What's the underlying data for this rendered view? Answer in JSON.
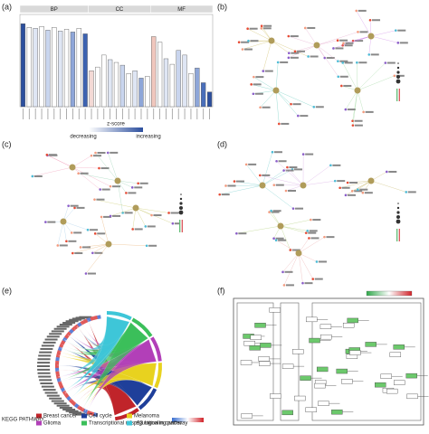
{
  "panels": [
    "(a)",
    "(b)",
    "(c)",
    "(d)",
    "(e)",
    "(f)"
  ],
  "chart_data": {
    "type": "bar",
    "ylim": [
      0,
      10
    ],
    "facets": [
      {
        "name": "BP",
        "values": [
          9.0,
          8.6,
          8.5,
          8.7,
          8.3,
          8.6,
          8.2,
          8.4,
          8.1,
          8.5,
          7.9
        ],
        "colors": [
          "#2c4f9e",
          "#ffffff",
          "#dfe6f4",
          "#ffffff",
          "#c9d5ee",
          "#ffffff",
          "#dfe6f4",
          "#ffffff",
          "#8ea6d8",
          "#ffffff",
          "#3d62b0"
        ]
      },
      {
        "name": "CC",
        "values": [
          3.9,
          4.3,
          5.6,
          5.1,
          4.8,
          4.5,
          3.6,
          3.9,
          3.1,
          3.3
        ],
        "colors": [
          "#f3d9d5",
          "#ffffff",
          "#ffffff",
          "#dfe6f4",
          "#ffffff",
          "#c9d5ee",
          "#ffffff",
          "#dfe6f4",
          "#8ea6d8",
          "#ffffff"
        ]
      },
      {
        "name": "MF",
        "values": [
          7.6,
          7.0,
          5.2,
          4.6,
          6.1,
          5.6,
          3.6,
          4.2,
          2.6,
          1.6
        ],
        "colors": [
          "#f0c7bd",
          "#ffffff",
          "#dfe6f4",
          "#ffffff",
          "#c9d5ee",
          "#dfe6f4",
          "#ffffff",
          "#8ea6d8",
          "#4a6fba",
          "#2c4f9e"
        ]
      }
    ],
    "legend_title": "z-score",
    "legend_low": "decreasing",
    "legend_high": "increasing"
  },
  "chord": {
    "title": "KEGG PATHWAY",
    "pathways": [
      {
        "name": "Breast cancer",
        "color": "#c0242a"
      },
      {
        "name": "Cell cycle",
        "color": "#1f3f9a"
      },
      {
        "name": "Melanoma",
        "color": "#e8d21f"
      },
      {
        "name": "Glioma",
        "color": "#b23fb8"
      },
      {
        "name": "Transcriptional misregulation in cancer",
        "color": "#3bbf5a"
      },
      {
        "name": "p53 signaling pathway",
        "color": "#3ec6d8"
      }
    ]
  }
}
